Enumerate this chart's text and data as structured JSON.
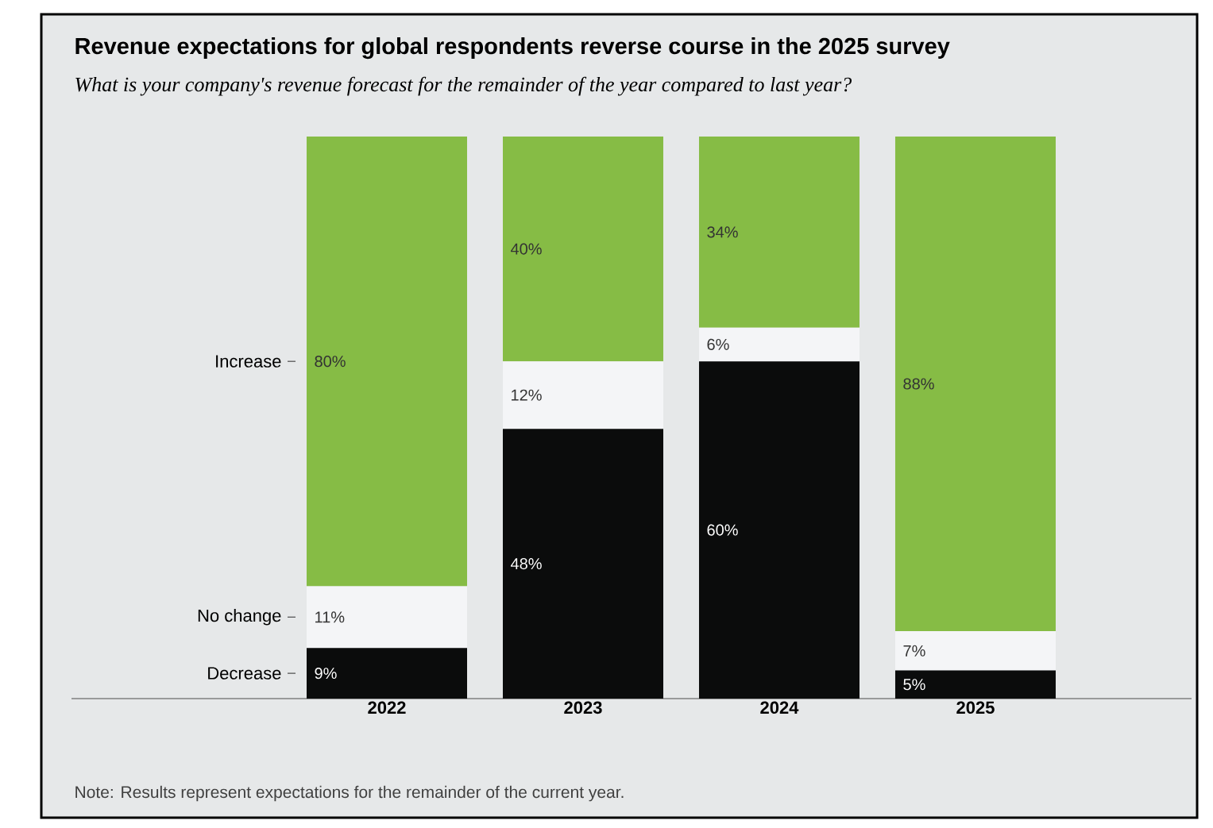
{
  "chart_data": {
    "type": "bar",
    "stacked": true,
    "title": "Revenue expectations for global respondents reverse course in the 2025 survey",
    "subtitle": "What is your company's revenue forecast for the remainder of the year compared to last year?",
    "categories": [
      "2022",
      "2023",
      "2024",
      "2025"
    ],
    "series": [
      {
        "name": "Decrease",
        "color": "#0b0c0c",
        "values": [
          9,
          48,
          60,
          5
        ],
        "value_labels": [
          "9%",
          "48%",
          "60%",
          "5%"
        ]
      },
      {
        "name": "No change",
        "color": "#f4f5f7",
        "values": [
          11,
          12,
          6,
          7
        ],
        "value_labels": [
          "11%",
          "12%",
          "6%",
          "7%"
        ]
      },
      {
        "name": "Increase",
        "color": "#86bc45",
        "values": [
          80,
          40,
          34,
          88
        ],
        "value_labels": [
          "80%",
          "40%",
          "34%",
          "88%"
        ]
      }
    ],
    "annotations": [
      "Note: Results represent expectations for the remainder of the current year."
    ]
  }
}
